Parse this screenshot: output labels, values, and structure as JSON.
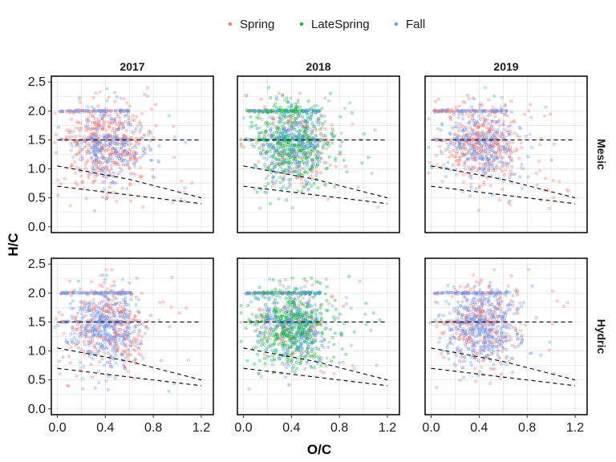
{
  "chart_data": {
    "type": "scatter",
    "xlabel": "O/C",
    "ylabel": "H/C",
    "xlim": [
      -0.05,
      1.3
    ],
    "ylim": [
      -0.1,
      2.6
    ],
    "x_ticks": [
      "0.0",
      "0.4",
      "0.8",
      "1.2"
    ],
    "y_ticks": [
      "0.0",
      "0.5",
      "1.0",
      "1.5",
      "2.0",
      "2.5"
    ],
    "facet_columns": [
      "2017",
      "2018",
      "2019"
    ],
    "facet_rows": [
      "Mesic",
      "Hydric"
    ],
    "legend": {
      "position": "top"
    },
    "grid": true,
    "series": [
      {
        "name": "Spring",
        "color": "#F8766D"
      },
      {
        "name": "LateSpring",
        "color": "#00BA38"
      },
      {
        "name": "Fall",
        "color": "#619CFF"
      }
    ],
    "reference_lines": [
      {
        "points": [
          [
            0.0,
            1.5
          ],
          [
            1.2,
            1.5
          ]
        ]
      },
      {
        "points": [
          [
            0.0,
            1.05
          ],
          [
            0.6,
            0.82
          ],
          [
            1.2,
            0.5
          ]
        ]
      },
      {
        "points": [
          [
            0.0,
            0.7
          ],
          [
            0.6,
            0.55
          ],
          [
            1.2,
            0.4
          ]
        ]
      }
    ],
    "panels": [
      {
        "col": "2017",
        "row": "Mesic",
        "series_shown": [
          "Spring",
          "Fall"
        ],
        "points_per_series": [
          520,
          300
        ]
      },
      {
        "col": "2018",
        "row": "Mesic",
        "series_shown": [
          "Spring",
          "LateSpring",
          "Fall"
        ],
        "points_per_series": [
          250,
          520,
          320
        ]
      },
      {
        "col": "2019",
        "row": "Mesic",
        "series_shown": [
          "Spring",
          "Fall"
        ],
        "points_per_series": [
          500,
          320
        ]
      },
      {
        "col": "2017",
        "row": "Hydric",
        "series_shown": [
          "Spring",
          "Fall"
        ],
        "points_per_series": [
          420,
          420
        ]
      },
      {
        "col": "2018",
        "row": "Hydric",
        "series_shown": [
          "Spring",
          "LateSpring",
          "Fall"
        ],
        "points_per_series": [
          220,
          540,
          300
        ]
      },
      {
        "col": "2019",
        "row": "Hydric",
        "series_shown": [
          "Spring",
          "Fall"
        ],
        "points_per_series": [
          400,
          440
        ]
      }
    ]
  }
}
